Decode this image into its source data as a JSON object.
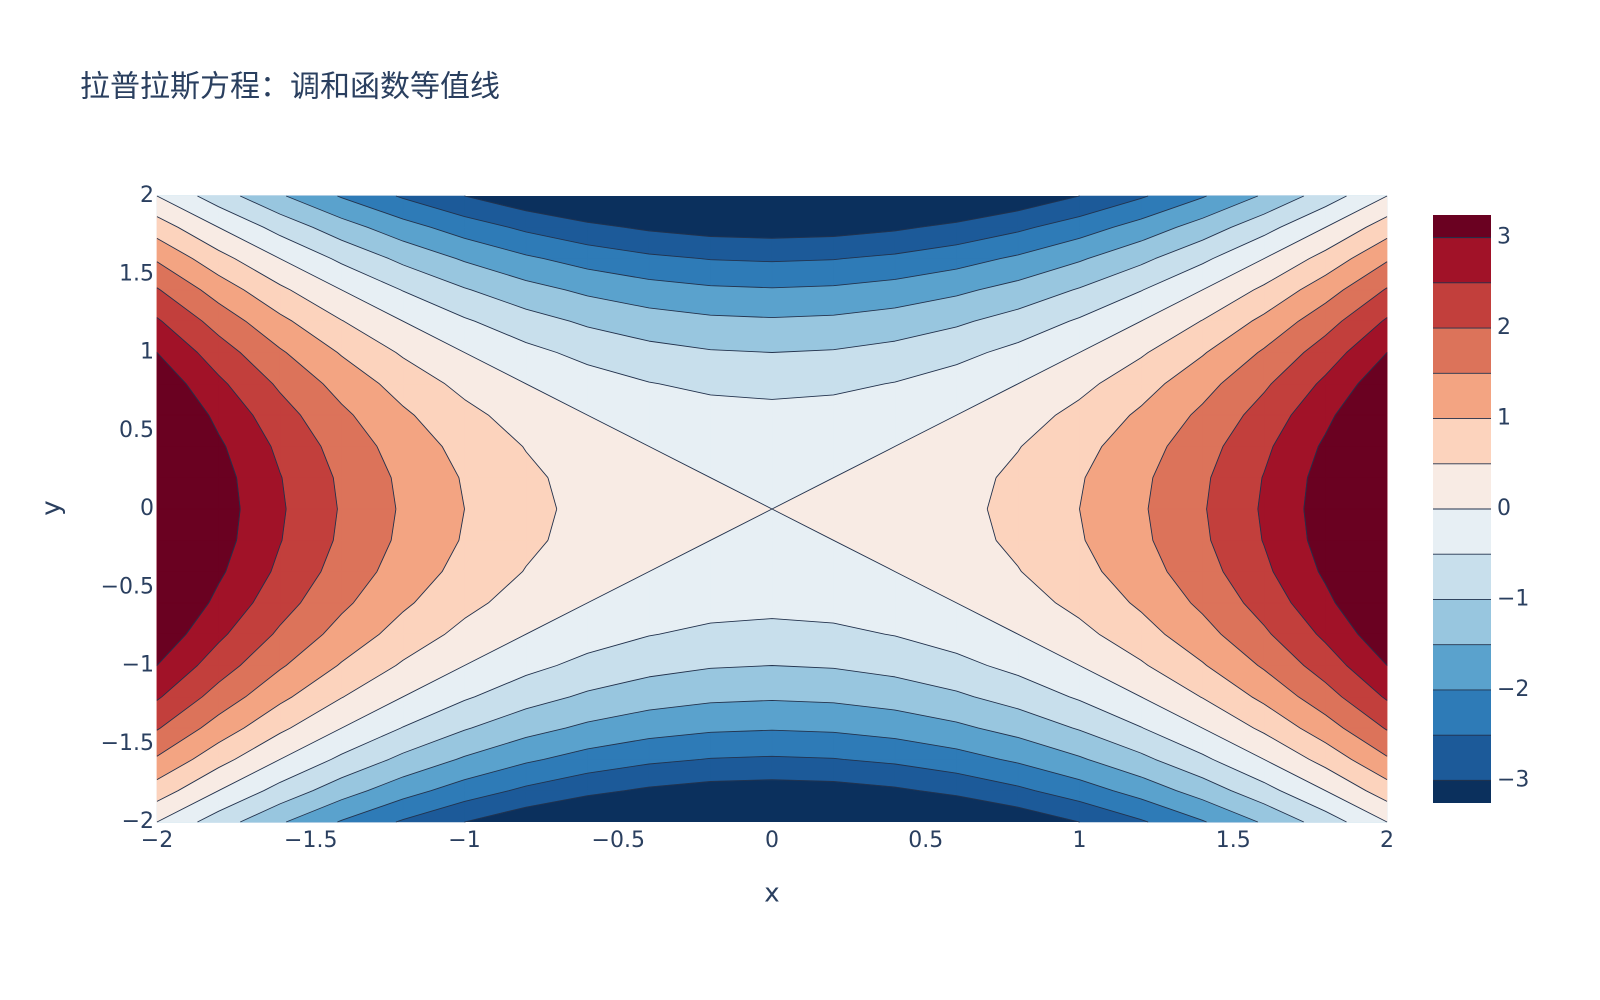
{
  "chart_data": {
    "type": "contour",
    "title": "拉普拉斯方程：调和函数等值线",
    "xaxis_title": "x",
    "yaxis_title": "y",
    "x": [
      -2,
      -1.8,
      -1.6,
      -1.4,
      -1.2,
      -1,
      -0.8,
      -0.6,
      -0.4,
      -0.2,
      0,
      0.2,
      0.4,
      0.6,
      0.8,
      1,
      1.2,
      1.4,
      1.6,
      1.8,
      2
    ],
    "y": [
      -2,
      -1.8,
      -1.6,
      -1.4,
      -1.2,
      -1,
      -0.8,
      -0.6,
      -0.4,
      -0.2,
      0,
      0.2,
      0.4,
      0.6,
      0.8,
      1,
      1.2,
      1.4,
      1.6,
      1.8,
      2
    ],
    "z": [
      [
        0,
        -0.76,
        -1.44,
        -2.04,
        -2.56,
        -3,
        -3.36,
        -3.64,
        -3.84,
        -3.96,
        -4,
        -3.96,
        -3.84,
        -3.64,
        -3.36,
        -3,
        -2.56,
        -2.04,
        -1.44,
        -0.76,
        0
      ],
      [
        0.76,
        0,
        -0.68,
        -1.28,
        -1.8,
        -2.24,
        -2.6,
        -2.88,
        -3.08,
        -3.2,
        -3.24,
        -3.2,
        -3.08,
        -2.88,
        -2.6,
        -2.24,
        -1.8,
        -1.28,
        -0.68,
        0,
        0.76
      ],
      [
        1.44,
        0.68,
        0,
        -0.6,
        -1.12,
        -1.56,
        -1.92,
        -2.2,
        -2.4,
        -2.52,
        -2.56,
        -2.52,
        -2.4,
        -2.2,
        -1.92,
        -1.56,
        -1.12,
        -0.6,
        0,
        0.68,
        1.44
      ],
      [
        2.04,
        1.28,
        0.6,
        0,
        -0.52,
        -0.96,
        -1.32,
        -1.6,
        -1.8,
        -1.92,
        -1.96,
        -1.92,
        -1.8,
        -1.6,
        -1.32,
        -0.96,
        -0.52,
        0,
        0.6,
        1.28,
        2.04
      ],
      [
        2.56,
        1.8,
        1.12,
        0.52,
        0,
        -0.44,
        -0.8,
        -1.08,
        -1.28,
        -1.4,
        -1.44,
        -1.4,
        -1.28,
        -1.08,
        -0.8,
        -0.44,
        0,
        0.52,
        1.12,
        1.8,
        2.56
      ],
      [
        3,
        2.24,
        1.56,
        0.96,
        0.44,
        0,
        -0.36,
        -0.64,
        -0.84,
        -0.96,
        -1,
        -0.96,
        -0.84,
        -0.64,
        -0.36,
        0,
        0.44,
        0.96,
        1.56,
        2.24,
        3
      ],
      [
        3.36,
        2.6,
        1.92,
        1.32,
        0.8,
        0.36,
        0,
        -0.28,
        -0.48,
        -0.6,
        -0.64,
        -0.6,
        -0.48,
        -0.28,
        0,
        0.36,
        0.8,
        1.32,
        1.92,
        2.6,
        3.36
      ],
      [
        3.64,
        2.88,
        2.2,
        1.6,
        1.08,
        0.64,
        0.28,
        0,
        -0.2,
        -0.32,
        -0.36,
        -0.32,
        -0.2,
        0,
        0.28,
        0.64,
        1.08,
        1.6,
        2.2,
        2.88,
        3.64
      ],
      [
        3.84,
        3.08,
        2.4,
        1.8,
        1.28,
        0.84,
        0.48,
        0.2,
        0,
        -0.12,
        -0.16,
        -0.12,
        0,
        0.2,
        0.48,
        0.84,
        1.28,
        1.8,
        2.4,
        3.08,
        3.84
      ],
      [
        3.96,
        3.2,
        2.52,
        1.92,
        1.4,
        0.96,
        0.6,
        0.32,
        0.12,
        0,
        -0.04,
        0,
        0.12,
        0.32,
        0.6,
        0.96,
        1.4,
        1.92,
        2.52,
        3.2,
        3.96
      ],
      [
        4,
        3.24,
        2.56,
        1.96,
        1.44,
        1,
        0.64,
        0.36,
        0.16,
        0.04,
        0,
        0.04,
        0.16,
        0.36,
        0.64,
        1,
        1.44,
        1.96,
        2.56,
        3.24,
        4
      ],
      [
        3.96,
        3.2,
        2.52,
        1.92,
        1.4,
        0.96,
        0.6,
        0.32,
        0.12,
        0,
        -0.04,
        0,
        0.12,
        0.32,
        0.6,
        0.96,
        1.4,
        1.92,
        2.52,
        3.2,
        3.96
      ],
      [
        3.84,
        3.08,
        2.4,
        1.8,
        1.28,
        0.84,
        0.48,
        0.2,
        0,
        -0.12,
        -0.16,
        -0.12,
        0,
        0.2,
        0.48,
        0.84,
        1.28,
        1.8,
        2.4,
        3.08,
        3.84
      ],
      [
        3.64,
        2.88,
        2.2,
        1.6,
        1.08,
        0.64,
        0.28,
        0,
        -0.2,
        -0.32,
        -0.36,
        -0.32,
        -0.2,
        0,
        0.28,
        0.64,
        1.08,
        1.6,
        2.2,
        2.88,
        3.64
      ],
      [
        3.36,
        2.6,
        1.92,
        1.32,
        0.8,
        0.36,
        0,
        -0.28,
        -0.48,
        -0.6,
        -0.64,
        -0.6,
        -0.48,
        -0.28,
        0,
        0.36,
        0.8,
        1.32,
        1.92,
        2.6,
        3.36
      ],
      [
        3,
        2.24,
        1.56,
        0.96,
        0.44,
        0,
        -0.36,
        -0.64,
        -0.84,
        -0.96,
        -1,
        -0.96,
        -0.84,
        -0.64,
        -0.36,
        0,
        0.44,
        0.96,
        1.56,
        2.24,
        3
      ],
      [
        2.56,
        1.8,
        1.12,
        0.52,
        0,
        -0.44,
        -0.8,
        -1.08,
        -1.28,
        -1.4,
        -1.44,
        -1.4,
        -1.28,
        -1.08,
        -0.8,
        -0.44,
        0,
        0.52,
        1.12,
        1.8,
        2.56
      ],
      [
        2.04,
        1.28,
        0.6,
        0,
        -0.52,
        -0.96,
        -1.32,
        -1.6,
        -1.8,
        -1.92,
        -1.96,
        -1.92,
        -1.8,
        -1.6,
        -1.32,
        -0.96,
        -0.52,
        0,
        0.6,
        1.28,
        2.04
      ],
      [
        1.44,
        0.68,
        0,
        -0.6,
        -1.12,
        -1.56,
        -1.92,
        -2.2,
        -2.4,
        -2.52,
        -2.56,
        -2.52,
        -2.4,
        -2.2,
        -1.92,
        -1.56,
        -1.12,
        -0.6,
        0,
        0.68,
        1.44
      ],
      [
        0.76,
        0,
        -0.68,
        -1.28,
        -1.8,
        -2.24,
        -2.6,
        -2.88,
        -3.08,
        -3.2,
        -3.24,
        -3.2,
        -3.08,
        -2.88,
        -2.6,
        -2.24,
        -1.8,
        -1.28,
        -0.68,
        0,
        0.76
      ],
      [
        0,
        -0.76,
        -1.44,
        -2.04,
        -2.56,
        -3,
        -3.36,
        -3.64,
        -3.84,
        -3.96,
        -4,
        -3.96,
        -3.84,
        -3.64,
        -3.36,
        -3,
        -2.56,
        -2.04,
        -1.44,
        -0.76,
        0
      ]
    ],
    "levels": [
      -3,
      -2.5,
      -2,
      -1.5,
      -1,
      -0.5,
      0,
      0.5,
      1,
      1.5,
      2,
      2.5,
      3
    ],
    "colors": [
      "#0b305d",
      "#1c5a99",
      "#2e7bb7",
      "#5aa2cd",
      "#98c6df",
      "#c8dfec",
      "#e7eff4",
      "#f8ebe4",
      "#fcd3bd",
      "#f3a482",
      "#dc735a",
      "#c23f3c",
      "#a11228",
      "#6a0121"
    ],
    "line_color": "#22324d",
    "xlim": [
      -2,
      2
    ],
    "ylim": [
      -2,
      2
    ],
    "xticks": [
      {
        "value": -2,
        "label": "−2"
      },
      {
        "value": -1.5,
        "label": "−1.5"
      },
      {
        "value": -1,
        "label": "−1"
      },
      {
        "value": -0.5,
        "label": "−0.5"
      },
      0,
      0.5,
      1,
      1.5,
      2
    ],
    "yticks": [
      {
        "value": -2,
        "label": "−2"
      },
      {
        "value": -1.5,
        "label": "−1.5"
      },
      {
        "value": -1,
        "label": "−1"
      },
      {
        "value": -0.5,
        "label": "−0.5"
      },
      0,
      0.5,
      1,
      1.5,
      2
    ],
    "colorbar": {
      "range": [
        -3.25,
        3.25
      ],
      "ticks": [
        {
          "value": -3,
          "label": "−3"
        },
        {
          "value": -2,
          "label": "−2"
        },
        {
          "value": -1,
          "label": "−1"
        },
        0,
        1,
        2,
        3
      ]
    }
  }
}
